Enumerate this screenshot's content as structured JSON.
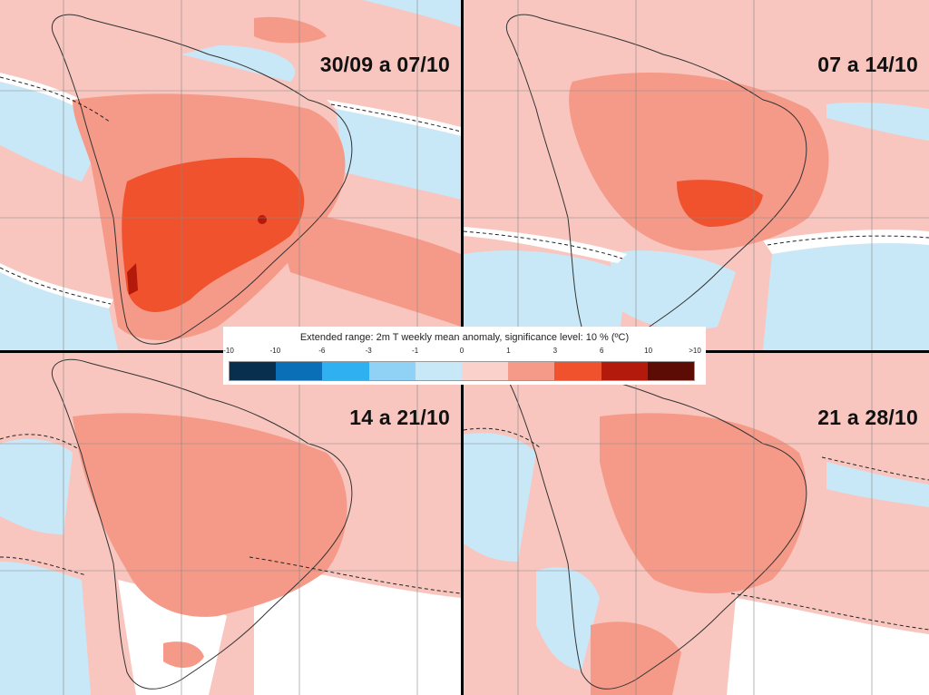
{
  "legend": {
    "title": "Extended range: 2m T weekly mean anomaly, significance level: 10 % (ºC)",
    "tick_labels": [
      "-10",
      "-10",
      "-6",
      "-3",
      "-1",
      "0",
      "1",
      "3",
      "6",
      "10",
      ">10"
    ],
    "colors": [
      "#08304e",
      "#0b6fb8",
      "#2fb0f0",
      "#8fd2f5",
      "#c8e8f8",
      "#fbd2cb",
      "#f59a88",
      "#f0522e",
      "#b41a0b",
      "#5c0c05"
    ]
  },
  "panels": [
    {
      "id": "week1",
      "label": "30/09 a 07/10"
    },
    {
      "id": "week2",
      "label": "07 a 14/10"
    },
    {
      "id": "week3",
      "label": "14 a 21/10"
    },
    {
      "id": "week4",
      "label": "21 a 28/10"
    }
  ]
}
